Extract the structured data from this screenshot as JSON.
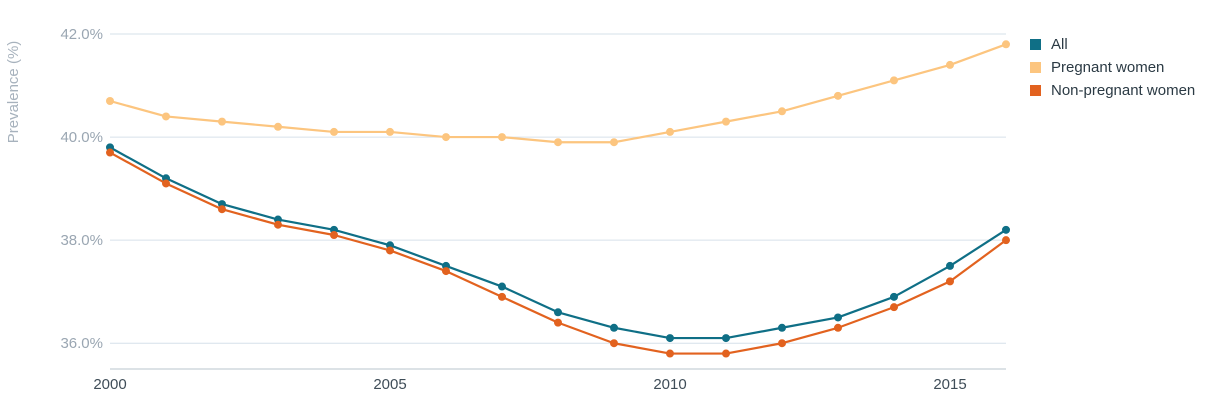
{
  "chart_data": {
    "type": "line",
    "ylabel": "Prevalence (%)",
    "xlabel": "",
    "x": [
      2000,
      2001,
      2002,
      2003,
      2004,
      2005,
      2006,
      2007,
      2008,
      2009,
      2010,
      2011,
      2012,
      2013,
      2014,
      2015,
      2016
    ],
    "x_ticks": [
      "2000",
      "2005",
      "2010",
      "2015"
    ],
    "y_ticks": [
      "36.0%",
      "38.0%",
      "40.0%",
      "42.0%"
    ],
    "ylim": [
      35.5,
      42.0
    ],
    "xlim": [
      2000,
      2016
    ],
    "grid": true,
    "legend_position": "right",
    "series": [
      {
        "name": "All",
        "color": "#0f6f86",
        "values": [
          39.8,
          39.2,
          38.7,
          38.4,
          38.2,
          37.9,
          37.5,
          37.1,
          36.6,
          36.3,
          36.1,
          36.1,
          36.3,
          36.5,
          36.9,
          37.5,
          38.2
        ]
      },
      {
        "name": "Pregnant women",
        "color": "#fcc57f",
        "values": [
          40.7,
          40.4,
          40.3,
          40.2,
          40.1,
          40.1,
          40.0,
          40.0,
          39.9,
          39.9,
          40.1,
          40.3,
          40.5,
          40.8,
          41.1,
          41.4,
          41.8
        ]
      },
      {
        "name": "Non-pregnant women",
        "color": "#e2621f",
        "values": [
          39.7,
          39.1,
          38.6,
          38.3,
          38.1,
          37.8,
          37.4,
          36.9,
          36.4,
          36.0,
          35.8,
          35.8,
          36.0,
          36.3,
          36.7,
          37.2,
          38.0
        ]
      }
    ]
  }
}
